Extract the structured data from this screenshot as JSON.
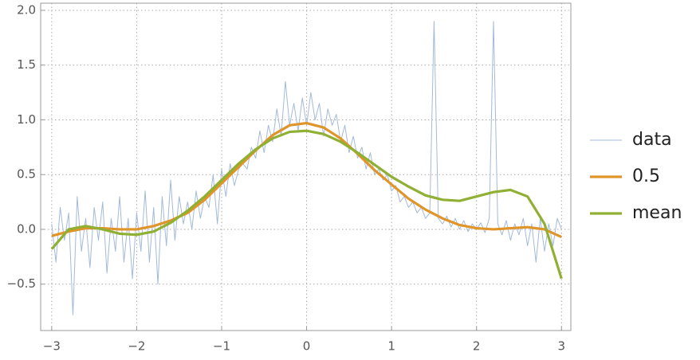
{
  "chart_data": {
    "type": "line",
    "xlim": [
      -3.13,
      3.11
    ],
    "ylim": [
      -0.924,
      2.065
    ],
    "xticks": [
      {
        "value": -3,
        "label": "−3"
      },
      {
        "value": -2,
        "label": "−2"
      },
      {
        "value": -1,
        "label": "−1"
      },
      0,
      1,
      2,
      3
    ],
    "yticks": [
      {
        "value": -0.5,
        "label": "−0.5"
      },
      {
        "value": 0,
        "label": "0.0"
      },
      0.5,
      {
        "value": 1,
        "label": "1.0"
      },
      1.5,
      {
        "value": 2,
        "label": "2.0"
      }
    ],
    "grid": true,
    "legend": "right",
    "series": [
      {
        "name": "data",
        "color": "#a3b9da",
        "x": [
          -3.0,
          -2.95,
          -2.9,
          -2.85,
          -2.8,
          -2.75,
          -2.7,
          -2.65,
          -2.6,
          -2.55,
          -2.5,
          -2.45,
          -2.4,
          -2.35,
          -2.3,
          -2.25,
          -2.2,
          -2.15,
          -2.1,
          -2.05,
          -2.0,
          -1.95,
          -1.9,
          -1.85,
          -1.8,
          -1.75,
          -1.7,
          -1.65,
          -1.6,
          -1.55,
          -1.5,
          -1.45,
          -1.4,
          -1.35,
          -1.3,
          -1.25,
          -1.2,
          -1.15,
          -1.1,
          -1.05,
          -1.0,
          -0.95,
          -0.9,
          -0.85,
          -0.8,
          -0.75,
          -0.7,
          -0.65,
          -0.6,
          -0.55,
          -0.5,
          -0.45,
          -0.4,
          -0.35,
          -0.3,
          -0.25,
          -0.2,
          -0.15,
          -0.1,
          -0.05,
          0.0,
          0.05,
          0.1,
          0.15,
          0.2,
          0.25,
          0.3,
          0.35,
          0.4,
          0.45,
          0.5,
          0.55,
          0.6,
          0.65,
          0.7,
          0.75,
          0.8,
          0.85,
          0.9,
          0.95,
          1.0,
          1.05,
          1.1,
          1.15,
          1.2,
          1.25,
          1.3,
          1.35,
          1.4,
          1.45,
          1.5,
          1.55,
          1.6,
          1.65,
          1.7,
          1.75,
          1.8,
          1.85,
          1.9,
          1.95,
          2.0,
          2.05,
          2.1,
          2.15,
          2.2,
          2.25,
          2.3,
          2.35,
          2.4,
          2.45,
          2.5,
          2.55,
          2.6,
          2.65,
          2.7,
          2.75,
          2.8,
          2.85,
          2.9,
          2.95,
          3.0
        ],
        "values": [
          0.05,
          -0.3,
          0.2,
          -0.1,
          0.15,
          -0.78,
          0.3,
          -0.2,
          0.1,
          -0.35,
          0.2,
          -0.1,
          0.25,
          -0.4,
          0.1,
          -0.2,
          0.3,
          -0.3,
          0.1,
          -0.45,
          0.15,
          -0.2,
          0.35,
          -0.3,
          0.2,
          -0.5,
          0.3,
          -0.15,
          0.45,
          -0.1,
          0.3,
          0.05,
          0.25,
          0.0,
          0.35,
          0.1,
          0.3,
          0.2,
          0.5,
          0.05,
          0.55,
          0.3,
          0.6,
          0.4,
          0.55,
          0.6,
          0.55,
          0.75,
          0.65,
          0.9,
          0.7,
          0.95,
          0.8,
          1.1,
          0.85,
          1.35,
          0.95,
          1.15,
          0.9,
          1.2,
          0.95,
          1.25,
          1.0,
          1.15,
          0.85,
          1.1,
          0.95,
          1.05,
          0.8,
          0.95,
          0.7,
          0.85,
          0.65,
          0.75,
          0.55,
          0.7,
          0.5,
          0.55,
          0.45,
          0.5,
          0.35,
          0.4,
          0.25,
          0.3,
          0.2,
          0.25,
          0.15,
          0.2,
          0.1,
          0.15,
          1.9,
          0.1,
          0.05,
          0.12,
          0.02,
          0.1,
          0.0,
          0.08,
          -0.02,
          0.05,
          0.0,
          0.06,
          -0.03,
          0.1,
          1.9,
          0.05,
          -0.05,
          0.08,
          -0.1,
          0.05,
          -0.05,
          0.1,
          -0.15,
          0.05,
          -0.3,
          0.1,
          -0.2,
          0.05,
          -0.15,
          0.1,
          0.0
        ]
      },
      {
        "name": "0.5",
        "color": "#e0952a",
        "x": [
          -3.0,
          -2.8,
          -2.6,
          -2.4,
          -2.2,
          -2.0,
          -1.8,
          -1.6,
          -1.4,
          -1.2,
          -1.0,
          -0.8,
          -0.6,
          -0.4,
          -0.2,
          0.0,
          0.2,
          0.4,
          0.6,
          0.8,
          1.0,
          1.2,
          1.4,
          1.6,
          1.8,
          2.0,
          2.2,
          2.4,
          2.6,
          2.8,
          3.0
        ],
        "values": [
          -0.06,
          -0.02,
          0.01,
          0.01,
          0.0,
          0.0,
          0.03,
          0.08,
          0.15,
          0.27,
          0.42,
          0.57,
          0.72,
          0.86,
          0.95,
          0.97,
          0.93,
          0.83,
          0.69,
          0.54,
          0.41,
          0.28,
          0.18,
          0.1,
          0.04,
          0.01,
          0.0,
          0.01,
          0.02,
          0.0,
          -0.07
        ]
      },
      {
        "name": "mean",
        "color": "#8fb032",
        "x": [
          -3.0,
          -2.8,
          -2.6,
          -2.4,
          -2.2,
          -2.0,
          -1.8,
          -1.6,
          -1.4,
          -1.2,
          -1.0,
          -0.8,
          -0.6,
          -0.4,
          -0.2,
          0.0,
          0.2,
          0.4,
          0.6,
          0.8,
          1.0,
          1.2,
          1.4,
          1.6,
          1.8,
          2.0,
          2.2,
          2.4,
          2.6,
          2.8,
          3.0
        ],
        "values": [
          -0.18,
          0.0,
          0.03,
          0.0,
          -0.04,
          -0.05,
          -0.02,
          0.06,
          0.17,
          0.3,
          0.45,
          0.6,
          0.73,
          0.83,
          0.89,
          0.9,
          0.87,
          0.8,
          0.7,
          0.59,
          0.48,
          0.39,
          0.31,
          0.27,
          0.26,
          0.3,
          0.34,
          0.36,
          0.3,
          0.05,
          -0.45
        ]
      }
    ]
  }
}
